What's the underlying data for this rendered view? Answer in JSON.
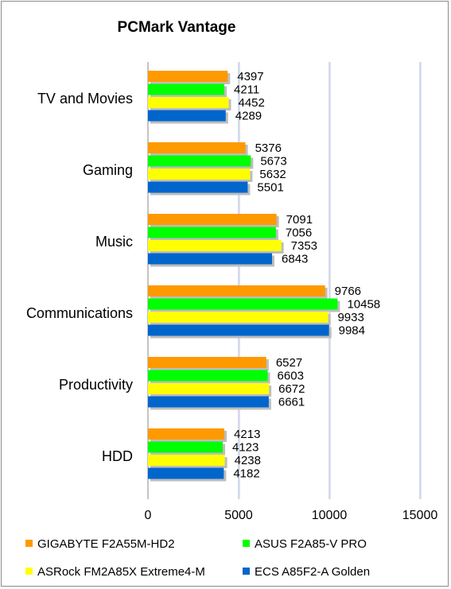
{
  "chart_data": {
    "type": "bar",
    "orientation": "horizontal",
    "title": "PCMark Vantage",
    "categories": [
      "TV and Movies",
      "Gaming",
      "Music",
      "Communications",
      "Productivity",
      "HDD"
    ],
    "series": [
      {
        "name": "GIGABYTE F2A55M-HD2",
        "color": "#ff9900",
        "values": [
          4397,
          5376,
          7091,
          9766,
          6527,
          4213
        ]
      },
      {
        "name": "ASUS F2A85-V PRO",
        "color": "#00ff00",
        "values": [
          4211,
          5673,
          7056,
          10458,
          6603,
          4123
        ]
      },
      {
        "name": "ASRock FM2A85X Extreme4-M",
        "color": "#ffff00",
        "values": [
          4452,
          5632,
          7353,
          9933,
          6672,
          4238
        ]
      },
      {
        "name": "ECS A85F2-A Golden",
        "color": "#0066cc",
        "values": [
          4289,
          5501,
          6843,
          9984,
          6661,
          4182
        ]
      }
    ],
    "xlim": [
      0,
      15000
    ],
    "xticks": [
      "0",
      "5000",
      "10000",
      "15000"
    ],
    "grid": true,
    "legend_position": "bottom"
  }
}
